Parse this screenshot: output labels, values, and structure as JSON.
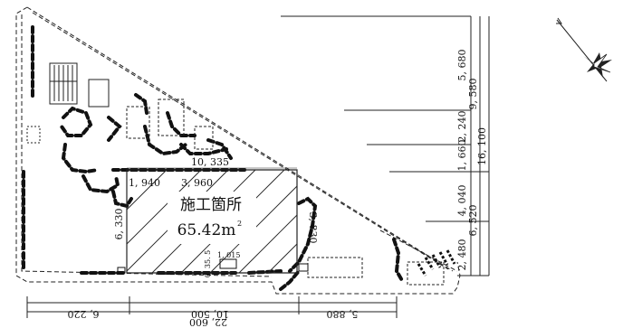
{
  "work_area": {
    "label": "施工箇所",
    "area": "65.42m",
    "area_exp": "2"
  },
  "dimensions": {
    "top_width": "10, 335",
    "left_seg": "1, 940",
    "right_seg": "3, 960",
    "left_height": "6, 330",
    "right_height": "3, 830",
    "small_a": "1, 015",
    "small_b": "0, 35. 5",
    "bottom_left": "6, 220",
    "bottom_mid": "10, 500",
    "bottom_right": "5, 880",
    "bottom_total": "22, 600",
    "right_labels": [
      "5, 680",
      "9, 580",
      "2, 240",
      "1, 660",
      "16, 100",
      "4, 040",
      "6, 520",
      "2, 480"
    ]
  },
  "icons": {
    "north": "compass-north-icon"
  }
}
